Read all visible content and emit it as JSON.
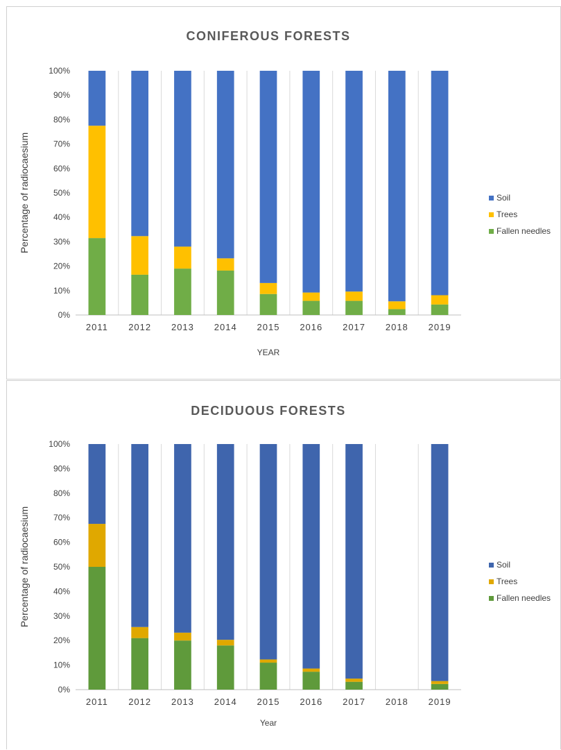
{
  "chart_data": [
    {
      "type": "bar",
      "stacked": true,
      "percent_stacked": true,
      "title": "CONIFEROUS FORESTS",
      "xlabel": "YEAR",
      "ylabel": "Percentage of radiocaesium",
      "ylim": [
        0,
        100
      ],
      "yticks": [
        "0%",
        "10%",
        "20%",
        "30%",
        "40%",
        "50%",
        "60%",
        "70%",
        "80%",
        "90%",
        "100%"
      ],
      "categories": [
        "2011",
        "2012",
        "2013",
        "2014",
        "2015",
        "2016",
        "2017",
        "2018",
        "2019"
      ],
      "series": [
        {
          "name": "Fallen needles",
          "color": "#70ad47",
          "values": [
            31.5,
            16.5,
            19,
            18.2,
            8.6,
            5.8,
            5.8,
            2.4,
            4.3
          ]
        },
        {
          "name": "Trees",
          "color": "#ffc000",
          "values": [
            46,
            15.8,
            9,
            5,
            4.5,
            3.4,
            3.8,
            3.2,
            3.8
          ]
        },
        {
          "name": "Soil",
          "color": "#4472c4",
          "values": [
            22.5,
            67.7,
            72,
            76.8,
            86.9,
            90.8,
            90.4,
            94.4,
            91.9
          ]
        }
      ],
      "legend": {
        "position": "right",
        "order": [
          "Soil",
          "Trees",
          "Fallen needles"
        ],
        "soil_label_color": "#4472c4"
      },
      "grid": "alternating-columns"
    },
    {
      "type": "bar",
      "stacked": true,
      "percent_stacked": true,
      "title": "DECIDUOUS FORESTS",
      "xlabel": "Year",
      "ylabel": "Percentage of radiocaesium",
      "ylim": [
        0,
        100
      ],
      "yticks": [
        "0%",
        "10%",
        "20%",
        "30%",
        "40%",
        "50%",
        "60%",
        "70%",
        "80%",
        "90%",
        "100%"
      ],
      "categories": [
        "2011",
        "2012",
        "2013",
        "2014",
        "2015",
        "2016",
        "2017",
        "2018",
        "2019"
      ],
      "series": [
        {
          "name": "Fallen needles",
          "color": "#5f9a3b",
          "values": [
            50,
            21,
            20,
            18,
            11,
            7.3,
            3.2,
            0,
            2.3
          ]
        },
        {
          "name": "Trees",
          "color": "#e0a800",
          "values": [
            17.5,
            4.5,
            3.2,
            2.3,
            1.3,
            1.3,
            1.3,
            0,
            1.2
          ]
        },
        {
          "name": "Soil",
          "color": "#3f65ad",
          "values": [
            32.5,
            74.5,
            76.8,
            79.7,
            87.7,
            91.4,
            95.5,
            0,
            96.5
          ]
        }
      ],
      "legend": {
        "position": "right",
        "order": [
          "Soil",
          "Trees",
          "Fallen needles"
        ],
        "soil_label_color": "#404040"
      },
      "grid": "alternating-columns"
    }
  ]
}
